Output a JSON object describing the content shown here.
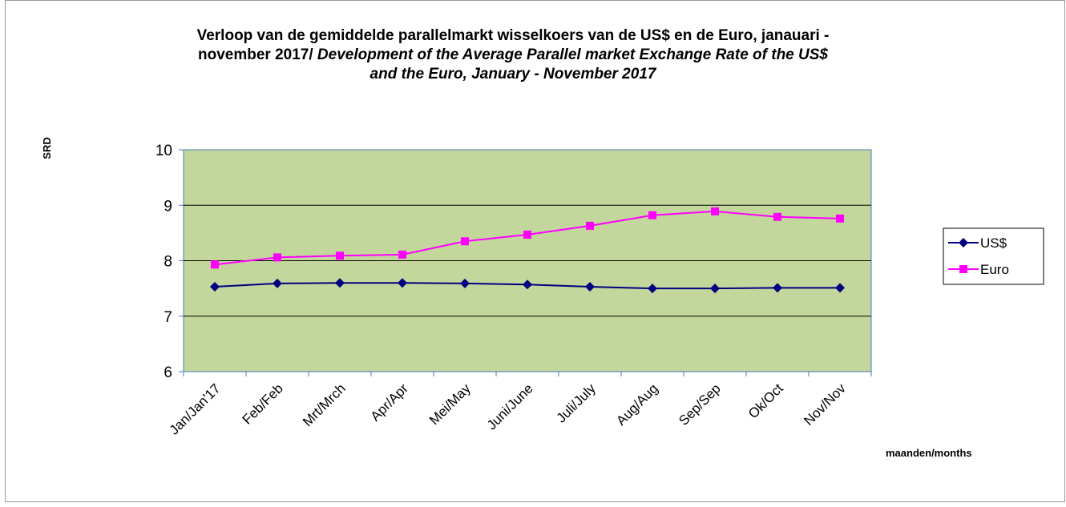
{
  "chart_data": {
    "type": "line",
    "title": [
      {
        "text": "Verloop van de gemiddelde parallelmarkt wisselkoers van de US$ en de Euro, janauari  -"
      },
      {
        "text": "november  2017/ "
      },
      {
        "text": "Development of the Average Parallel market Exchange Rate of the US$"
      },
      {
        "text": "and the Euro, January - November  2017"
      }
    ],
    "y_label": "SRD",
    "x_label": "maanden/months",
    "categories": [
      "Jan/Jan'17",
      "Feb/Feb",
      "Mrt/Mrch",
      "Apr/Apr",
      "Mei/May",
      "Juni/June",
      "Juli/July",
      "Aug/Aug",
      "Sep/Sep",
      "Ok/Oct",
      "Nov/Nov"
    ],
    "series": [
      {
        "name": "US$",
        "color": "#000080",
        "marker": "diamond",
        "values": [
          7.53,
          7.59,
          7.6,
          7.6,
          7.59,
          7.57,
          7.53,
          7.5,
          7.5,
          7.51,
          7.51
        ]
      },
      {
        "name": "Euro",
        "color": "#ff00ff",
        "marker": "square",
        "values": [
          7.93,
          8.06,
          8.09,
          8.11,
          8.35,
          8.47,
          8.63,
          8.82,
          8.89,
          8.79,
          8.76
        ]
      }
    ],
    "ylim": [
      6,
      10
    ],
    "yticks": [
      6,
      7,
      8,
      9,
      10
    ],
    "grid": true,
    "legend": "right"
  }
}
